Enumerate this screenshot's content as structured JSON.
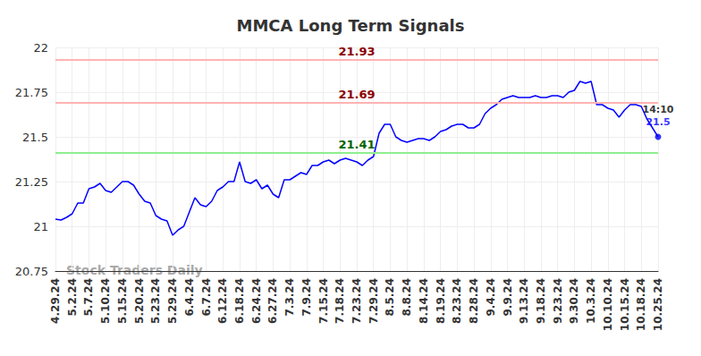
{
  "chart_data": {
    "type": "line",
    "title": "MMCA Long Term Signals",
    "categories": [
      "4.29.24",
      null,
      null,
      "5.2.24",
      null,
      null,
      "5.7.24",
      null,
      null,
      "5.10.24",
      null,
      null,
      "5.15.24",
      null,
      null,
      "5.20.24",
      null,
      null,
      "5.23.24",
      null,
      null,
      "5.29.24",
      null,
      null,
      "6.4.24",
      null,
      null,
      "6.7.24",
      null,
      null,
      "6.12.24",
      null,
      null,
      "6.18.24",
      null,
      null,
      "6.24.24",
      null,
      null,
      "6.27.24",
      null,
      null,
      "7.3.24",
      null,
      null,
      "7.9.24",
      null,
      null,
      "7.15.24",
      null,
      null,
      "7.18.24",
      null,
      null,
      "7.23.24",
      null,
      null,
      "7.29.24",
      null,
      null,
      "8.5.24",
      null,
      null,
      "8.8.24",
      null,
      null,
      "8.14.24",
      null,
      null,
      "8.19.24",
      null,
      null,
      "8.23.24",
      null,
      null,
      "8.28.24",
      null,
      null,
      "9.4.24",
      null,
      null,
      "9.9.24",
      null,
      null,
      "9.13.24",
      null,
      null,
      "9.18.24",
      null,
      null,
      "9.23.24",
      null,
      null,
      "9.30.24",
      null,
      null,
      "10.3.24",
      null,
      null,
      "10.10.24",
      null,
      null,
      "10.15.24",
      null,
      null,
      "10.18.24",
      null,
      null,
      "10.25.24"
    ],
    "values": [
      21.04,
      21.035,
      21.05,
      21.07,
      21.13,
      21.13,
      21.21,
      21.22,
      21.24,
      21.2,
      21.19,
      21.22,
      21.25,
      21.25,
      21.23,
      21.18,
      21.14,
      21.13,
      21.06,
      21.04,
      21.03,
      20.95,
      20.98,
      21.0,
      21.08,
      21.16,
      21.12,
      21.11,
      21.14,
      21.2,
      21.22,
      21.25,
      21.25,
      21.36,
      21.25,
      21.24,
      21.26,
      21.21,
      21.23,
      21.18,
      21.16,
      21.26,
      21.26,
      21.28,
      21.3,
      21.29,
      21.34,
      21.34,
      21.36,
      21.37,
      21.35,
      21.37,
      21.38,
      21.37,
      21.36,
      21.34,
      21.37,
      21.39,
      21.52,
      21.57,
      21.57,
      21.5,
      21.48,
      21.47,
      21.48,
      21.49,
      21.49,
      21.48,
      21.5,
      21.53,
      21.54,
      21.56,
      21.57,
      21.57,
      21.55,
      21.55,
      21.57,
      21.63,
      21.66,
      21.68,
      21.71,
      21.72,
      21.73,
      21.72,
      21.72,
      21.72,
      21.73,
      21.72,
      21.72,
      21.73,
      21.73,
      21.72,
      21.75,
      21.76,
      21.81,
      21.8,
      21.81,
      21.68,
      21.68,
      21.66,
      21.65,
      21.61,
      21.65,
      21.68,
      21.68,
      21.67,
      21.6,
      21.55,
      21.5
    ],
    "color": "#0000ff",
    "ylim": [
      20.75,
      22
    ],
    "yticks": [
      20.75,
      21,
      21.25,
      21.5,
      21.75,
      22
    ],
    "grid": true,
    "annotations": [
      {
        "value": 21.93,
        "label": "21.93",
        "color": "#ffb3b3"
      },
      {
        "value": 21.69,
        "label": "21.69",
        "color": "#ffb3b3"
      },
      {
        "value": 21.41,
        "label": "21.41",
        "color": "#90ee90"
      }
    ],
    "last_point": {
      "time_label": "14:10",
      "value_label": "21.5"
    },
    "watermark": "Stock Traders Daily"
  }
}
